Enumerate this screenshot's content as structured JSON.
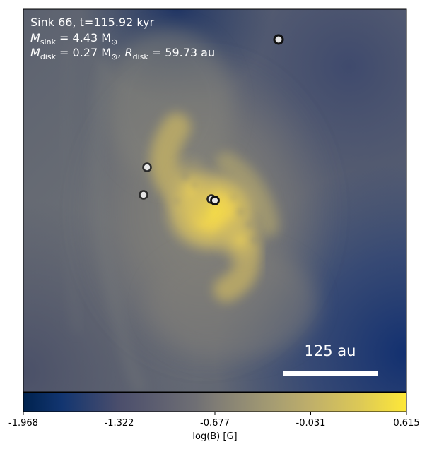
{
  "panel": {
    "sink_line": "Sink 66, t=115.92 kyr",
    "msink_symbol": "M",
    "msink_sub": "sink",
    "msink_value": " = 4.43 M",
    "msink_sun": "⊙",
    "mdisk_symbol": "M",
    "mdisk_sub": "disk",
    "mdisk_value": " = 0.27 M",
    "mdisk_sun": "⊙",
    "mdisk_sep": ", ",
    "rdisk_symbol": "R",
    "rdisk_sub": "disk",
    "rdisk_value": " = 59.73 au",
    "scalebar_label": "125 au"
  },
  "colorbar": {
    "ticks": [
      "-1.968",
      "-1.322",
      "-0.677",
      "-0.031",
      "0.615"
    ],
    "label": "log(B) [G]",
    "colormap": "cividis",
    "colors": [
      "#00224e",
      "#4b4e6c",
      "#7f7c75",
      "#bfaf6a",
      "#fee838"
    ]
  },
  "sinks": {
    "marker_fill": "#e6e6e6",
    "marker_edge": "#222222"
  }
}
